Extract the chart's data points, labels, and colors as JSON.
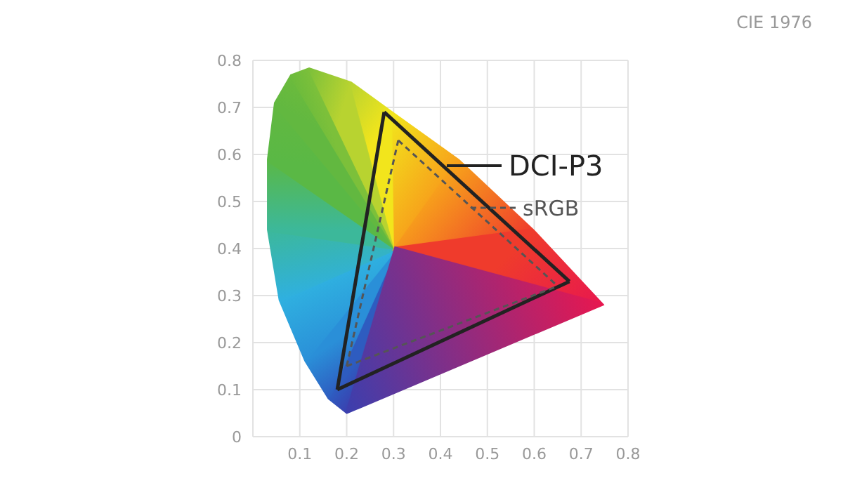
{
  "chart_data": {
    "type": "line",
    "title": "CIE 1976",
    "xlim": [
      0,
      0.8
    ],
    "ylim": [
      0,
      0.8
    ],
    "xticks": [
      {
        "value": 0,
        "label": null
      },
      0.1,
      0.2,
      0.3,
      0.4,
      0.5,
      0.6,
      0.7,
      0.8
    ],
    "yticks": [
      0,
      0.1,
      0.2,
      0.3,
      0.4,
      0.5,
      0.6,
      0.7,
      0.8
    ],
    "grid": true,
    "legend": "top right",
    "marker": "none",
    "series": [
      {
        "type": "area",
        "colors": [
          "#3b3fae",
          "#2e5cc0",
          "#2a8fd8",
          "#2fb0e0",
          "#3cb89a",
          "#5ab845",
          "#62b840",
          "#6cbb3c",
          "#7cc03a",
          "#b8d330",
          "#f2e51c",
          "#f7a21b",
          "#ef3b2c",
          "#e8174f",
          "#3b3fae"
        ],
        "x": [
          0.2,
          0.16,
          0.11,
          0.055,
          0.03,
          0.03,
          0.045,
          0.08,
          0.12,
          0.21,
          0.3,
          0.44,
          0.6,
          0.75,
          0.2
        ],
        "values": [
          0.048,
          0.08,
          0.16,
          0.29,
          0.44,
          0.59,
          0.71,
          0.77,
          0.785,
          0.755,
          0.69,
          0.59,
          0.44,
          0.28,
          0.048
        ]
      },
      {
        "name": "DCI-P3",
        "color": "#222222",
        "line_style": "solid",
        "x": [
          0.28,
          0.675
        ],
        "values": [
          0.69,
          0.33
        ]
      },
      {
        "color": "#222222",
        "line_style": "solid",
        "x": [
          0.18,
          0.675
        ],
        "values": [
          0.1,
          0.33
        ]
      },
      {
        "color": "#222222",
        "line_style": "solid",
        "x": [
          0.18,
          0.28
        ],
        "values": [
          0.1,
          0.69
        ]
      },
      {
        "name": "sRGB",
        "color": "#555555",
        "line_style": "dashed",
        "x": [
          0.31,
          0.65
        ],
        "values": [
          0.63,
          0.32
        ]
      },
      {
        "color": "#555555",
        "line_style": "dashed",
        "x": [
          0.2,
          0.65
        ],
        "values": [
          0.15,
          0.32
        ]
      },
      {
        "color": "#555555",
        "line_style": "dashed",
        "x": [
          0.2,
          0.31
        ],
        "values": [
          0.15,
          0.63
        ]
      }
    ]
  }
}
